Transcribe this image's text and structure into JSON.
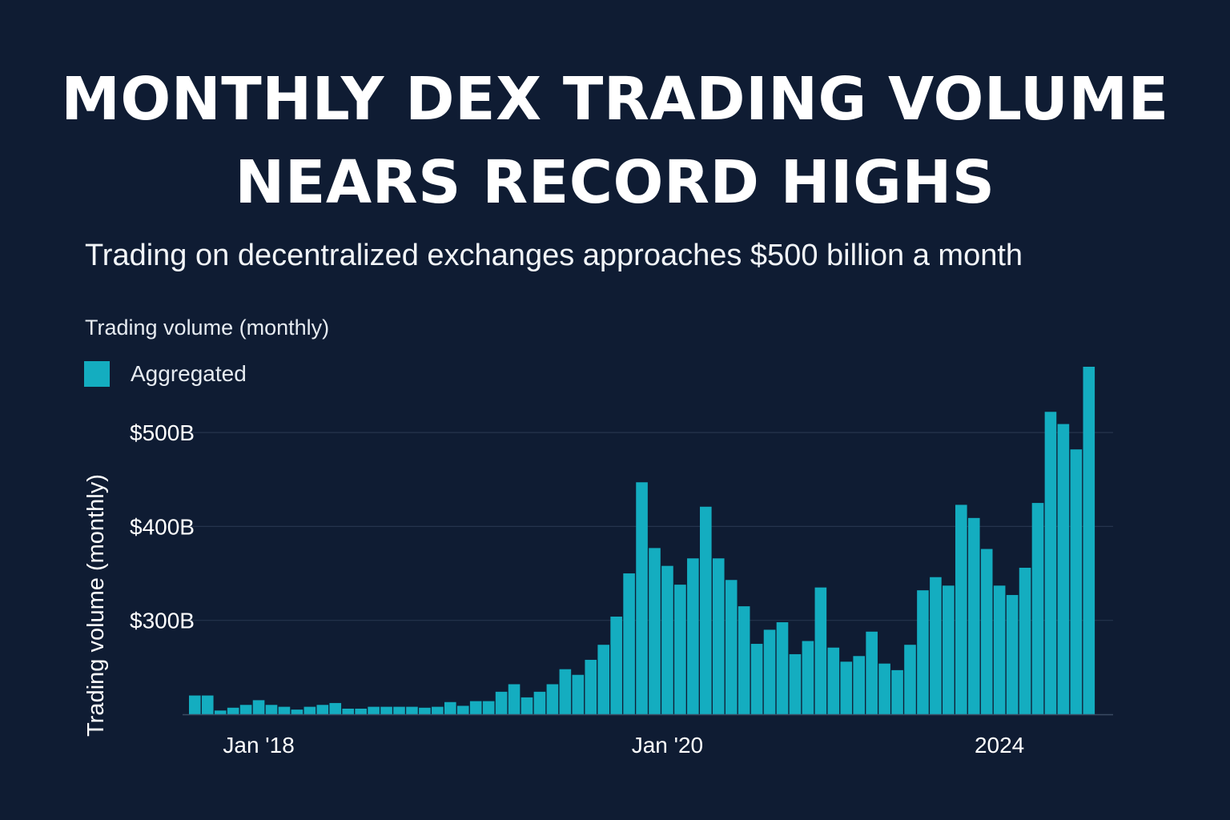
{
  "title_lines": [
    "MONTHLY DEX TRADING VOLUME",
    "NEARS RECORD HIGHS"
  ],
  "subtitle": "Trading on decentralized exchanges approaches $500 billion a month",
  "colors": {
    "background": "#0f1c33",
    "bar": "#14adc0",
    "gridline": "#26344d",
    "text": "#ffffff"
  },
  "chart_data": {
    "type": "bar",
    "chart_label": "Trading volume (monthly)",
    "ylabel": "Trading volume (monthly)",
    "xlabel": "",
    "legend": {
      "position": "top-left",
      "entries": [
        "Aggregated"
      ]
    },
    "grid": true,
    "ylim": [
      200,
      580
    ],
    "y_ticks": [
      {
        "value": 300,
        "label": "$300B"
      },
      {
        "value": 400,
        "label": "$400B"
      },
      {
        "value": 500,
        "label": "$500B"
      }
    ],
    "x_tick_labels": [
      {
        "index": 5,
        "label": "Jan '18"
      },
      {
        "index": 37,
        "label": "Jan '20"
      },
      {
        "index": 63,
        "label": "2024"
      }
    ],
    "series": [
      {
        "name": "Aggregated",
        "values": [
          220,
          220,
          204,
          207,
          210,
          215,
          210,
          208,
          205,
          208,
          210,
          212,
          206,
          206,
          208,
          208,
          208,
          208,
          207,
          208,
          213,
          209,
          214,
          214,
          224,
          232,
          218,
          224,
          232,
          248,
          242,
          258,
          274,
          304,
          350,
          447,
          377,
          358,
          338,
          366,
          421,
          366,
          343,
          315,
          275,
          290,
          298,
          264,
          278,
          335,
          271,
          256,
          262,
          288,
          254,
          247,
          274,
          332,
          346,
          337,
          423,
          409,
          376,
          337,
          327,
          356,
          425,
          522,
          509,
          482,
          570
        ]
      }
    ]
  }
}
